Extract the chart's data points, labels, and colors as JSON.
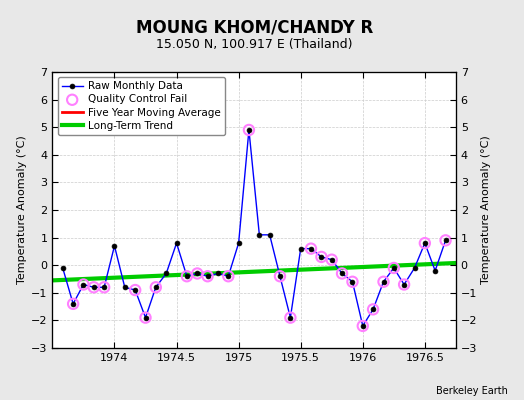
{
  "title": "MOUNG KHOM/CHANDY R",
  "subtitle": "15.050 N, 100.917 E (Thailand)",
  "ylabel": "Temperature Anomaly (°C)",
  "credit": "Berkeley Earth",
  "xlim": [
    1973.5,
    1976.75
  ],
  "ylim": [
    -3,
    7
  ],
  "yticks": [
    -3,
    -2,
    -1,
    0,
    1,
    2,
    3,
    4,
    5,
    6,
    7
  ],
  "xticks": [
    1974,
    1974.5,
    1975,
    1975.5,
    1976,
    1976.5
  ],
  "background_color": "#e8e8e8",
  "plot_bg_color": "#ffffff",
  "raw_x": [
    1973.583,
    1973.667,
    1973.75,
    1973.833,
    1973.917,
    1974.0,
    1974.083,
    1974.167,
    1974.25,
    1974.333,
    1974.417,
    1974.5,
    1974.583,
    1974.667,
    1974.75,
    1974.833,
    1974.917,
    1975.0,
    1975.083,
    1975.167,
    1975.25,
    1975.333,
    1975.417,
    1975.5,
    1975.583,
    1975.667,
    1975.75,
    1975.833,
    1975.917,
    1976.0,
    1976.083,
    1976.167,
    1976.25,
    1976.333,
    1976.417,
    1976.5,
    1976.583,
    1976.667
  ],
  "raw_y": [
    -0.1,
    -1.4,
    -0.7,
    -0.8,
    -0.8,
    0.7,
    -0.8,
    -0.9,
    -1.9,
    -0.8,
    -0.3,
    0.8,
    -0.4,
    -0.3,
    -0.4,
    -0.3,
    -0.4,
    0.8,
    4.9,
    1.1,
    1.1,
    -0.4,
    -1.9,
    0.6,
    0.6,
    0.3,
    0.2,
    -0.3,
    -0.6,
    -2.2,
    -1.6,
    -0.6,
    -0.1,
    -0.7,
    -0.1,
    0.8,
    -0.2,
    0.9
  ],
  "qc_fail_indices": [
    1,
    2,
    3,
    4,
    7,
    8,
    9,
    12,
    13,
    14,
    16,
    18,
    21,
    22,
    24,
    25,
    26,
    27,
    28,
    29,
    30,
    31,
    32,
    33,
    35,
    37
  ],
  "trend_x": [
    1973.5,
    1976.75
  ],
  "trend_y": [
    -0.55,
    0.08
  ],
  "legend_labels": [
    "Raw Monthly Data",
    "Quality Control Fail",
    "Five Year Moving Average",
    "Long-Term Trend"
  ],
  "line_color": "#0000ff",
  "qc_color": "#ff80ff",
  "ma_color": "#ff0000",
  "trend_color": "#00cc00",
  "title_fontsize": 12,
  "subtitle_fontsize": 9,
  "tick_fontsize": 8,
  "ylabel_fontsize": 8,
  "legend_fontsize": 7.5,
  "credit_fontsize": 7
}
